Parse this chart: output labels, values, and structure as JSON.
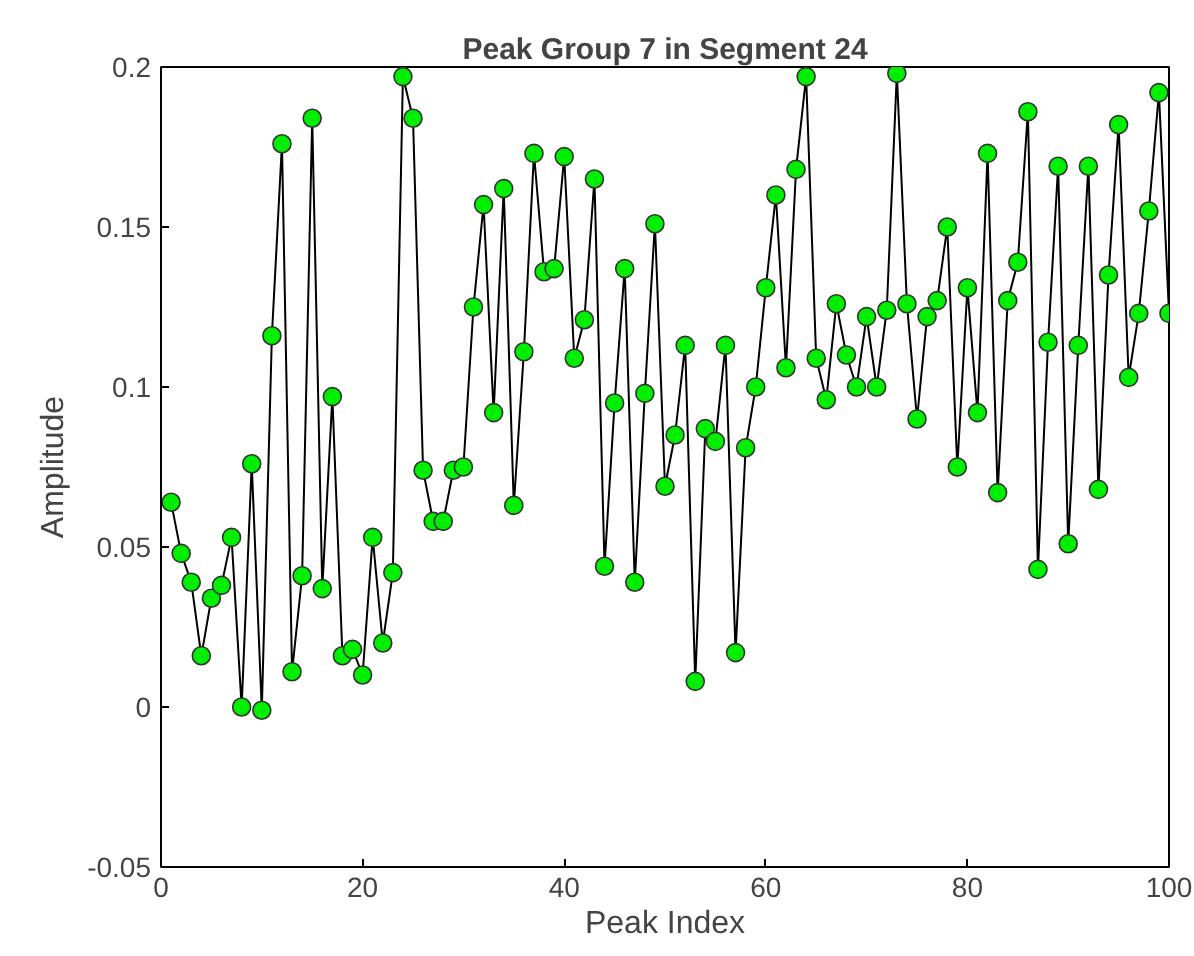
{
  "chart_data": {
    "type": "line",
    "title": "Peak Group 7 in Segment 24",
    "xlabel": "Peak Index",
    "ylabel": "Amplitude",
    "x": [
      1,
      2,
      3,
      4,
      5,
      6,
      7,
      8,
      9,
      10,
      11,
      12,
      13,
      14,
      15,
      16,
      17,
      18,
      19,
      20,
      21,
      22,
      23,
      24,
      25,
      26,
      27,
      28,
      29,
      30,
      31,
      32,
      33,
      34,
      35,
      36,
      37,
      38,
      39,
      40,
      41,
      42,
      43,
      44,
      45,
      46,
      47,
      48,
      49,
      50,
      51,
      52,
      53,
      54,
      55,
      56,
      57,
      58,
      59,
      60,
      61,
      62,
      63,
      64,
      65,
      66,
      67,
      68,
      69,
      70,
      71,
      72,
      73,
      74,
      75,
      76,
      77,
      78,
      79,
      80,
      81,
      82,
      83,
      84,
      85,
      86,
      87,
      88,
      89,
      90,
      91,
      92,
      93,
      94,
      95,
      96,
      97,
      98,
      99,
      100
    ],
    "series": [
      {
        "color": "#00ee00",
        "values": [
          0.064,
          0.048,
          0.039,
          0.016,
          0.034,
          0.038,
          0.053,
          0.0,
          0.076,
          -0.001,
          0.116,
          0.176,
          0.011,
          0.041,
          0.184,
          0.037,
          0.097,
          0.016,
          0.018,
          0.01,
          0.053,
          0.02,
          0.042,
          0.197,
          0.184,
          0.074,
          0.058,
          0.058,
          0.074,
          0.075,
          0.125,
          0.157,
          0.092,
          0.162,
          0.063,
          0.111,
          0.173,
          0.136,
          0.137,
          0.172,
          0.109,
          0.121,
          0.165,
          0.044,
          0.095,
          0.137,
          0.039,
          0.098,
          0.151,
          0.069,
          0.085,
          0.113,
          0.008,
          0.087,
          0.083,
          0.113,
          0.017,
          0.081,
          0.1,
          0.131,
          0.16,
          0.106,
          0.168,
          0.197,
          0.109,
          0.096,
          0.126,
          0.11,
          0.1,
          0.122,
          0.1,
          0.124,
          0.198,
          0.126,
          0.09,
          0.122,
          0.127,
          0.15,
          0.075,
          0.131,
          0.092,
          0.173,
          0.067,
          0.127,
          0.139,
          0.186,
          0.043,
          0.114,
          0.169,
          0.051,
          0.113,
          0.169,
          0.068,
          0.135,
          0.182,
          0.103,
          0.123,
          0.155,
          0.192,
          0.123
        ]
      }
    ],
    "xlim": [
      0,
      100
    ],
    "ylim": [
      -0.05,
      0.2
    ],
    "xticks": [
      0,
      20,
      40,
      60,
      80,
      100
    ],
    "yticks": [
      -0.05,
      0,
      0.05,
      0.1,
      0.15,
      0.2
    ],
    "grid": false,
    "marker": "circle",
    "line_style": "solid"
  }
}
